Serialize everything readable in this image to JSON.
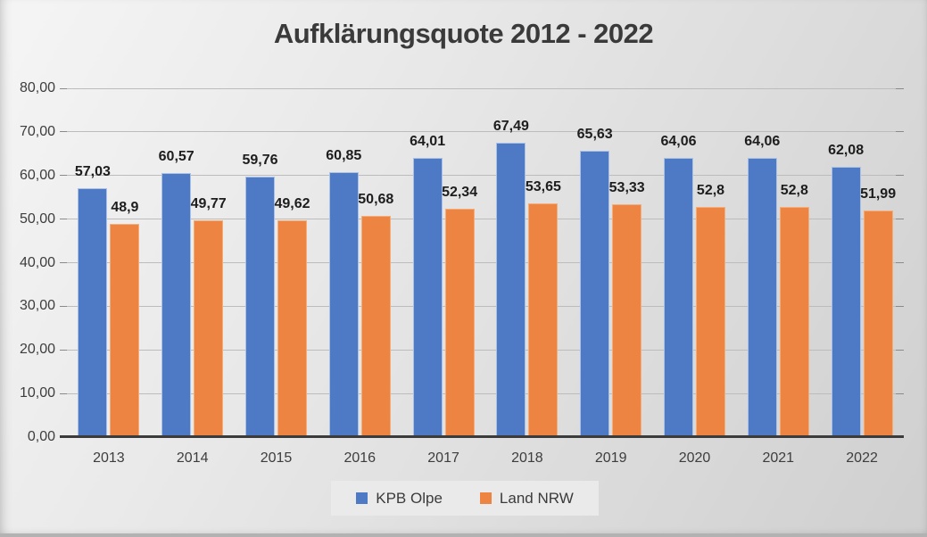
{
  "title": "Aufklärungsquote 2012 - 2022",
  "colors": {
    "kpb_olpe_fill": "#4d79c5",
    "kpb_olpe_border": "#aac1e6",
    "land_nrw_fill": "#ed8442",
    "land_nrw_border": "#f3ad7a",
    "background": "#dcdcdc",
    "gridline": "#bcbcbc",
    "axis_line": "#3b3b3b",
    "text": "#3d3d3d"
  },
  "chart_data": {
    "type": "bar",
    "title": "Aufklärungsquote 2012 - 2022",
    "categories": [
      "2013",
      "2014",
      "2015",
      "2016",
      "2017",
      "2018",
      "2019",
      "2020",
      "2021",
      "2022"
    ],
    "series": [
      {
        "name": "KPB Olpe",
        "color": "#4d79c5",
        "border_color": "#aac1e6",
        "values": [
          57.03,
          60.57,
          59.76,
          60.85,
          64.01,
          67.49,
          65.63,
          64.06,
          64.06,
          62.08
        ],
        "labels": [
          "57,03",
          "60,57",
          "59,76",
          "60,85",
          "64,01",
          "67,49",
          "65,63",
          "64,06",
          "64,06",
          "62,08"
        ]
      },
      {
        "name": "Land NRW",
        "color": "#ed8442",
        "border_color": "#f3ad7a",
        "values": [
          48.9,
          49.77,
          49.62,
          50.68,
          52.34,
          53.65,
          53.33,
          52.8,
          52.8,
          51.99
        ],
        "labels": [
          "48,9",
          "49,77",
          "49,62",
          "50,68",
          "52,34",
          "53,65",
          "53,33",
          "52,8",
          "52,8",
          "51,99"
        ]
      }
    ],
    "ylim": [
      0,
      80
    ],
    "ytick_step": 10,
    "ytick_labels": [
      "0,00",
      "10,00",
      "20,00",
      "30,00",
      "40,00",
      "50,00",
      "60,00",
      "70,00",
      "80,00"
    ],
    "grid": true,
    "legend_position": "bottom"
  }
}
